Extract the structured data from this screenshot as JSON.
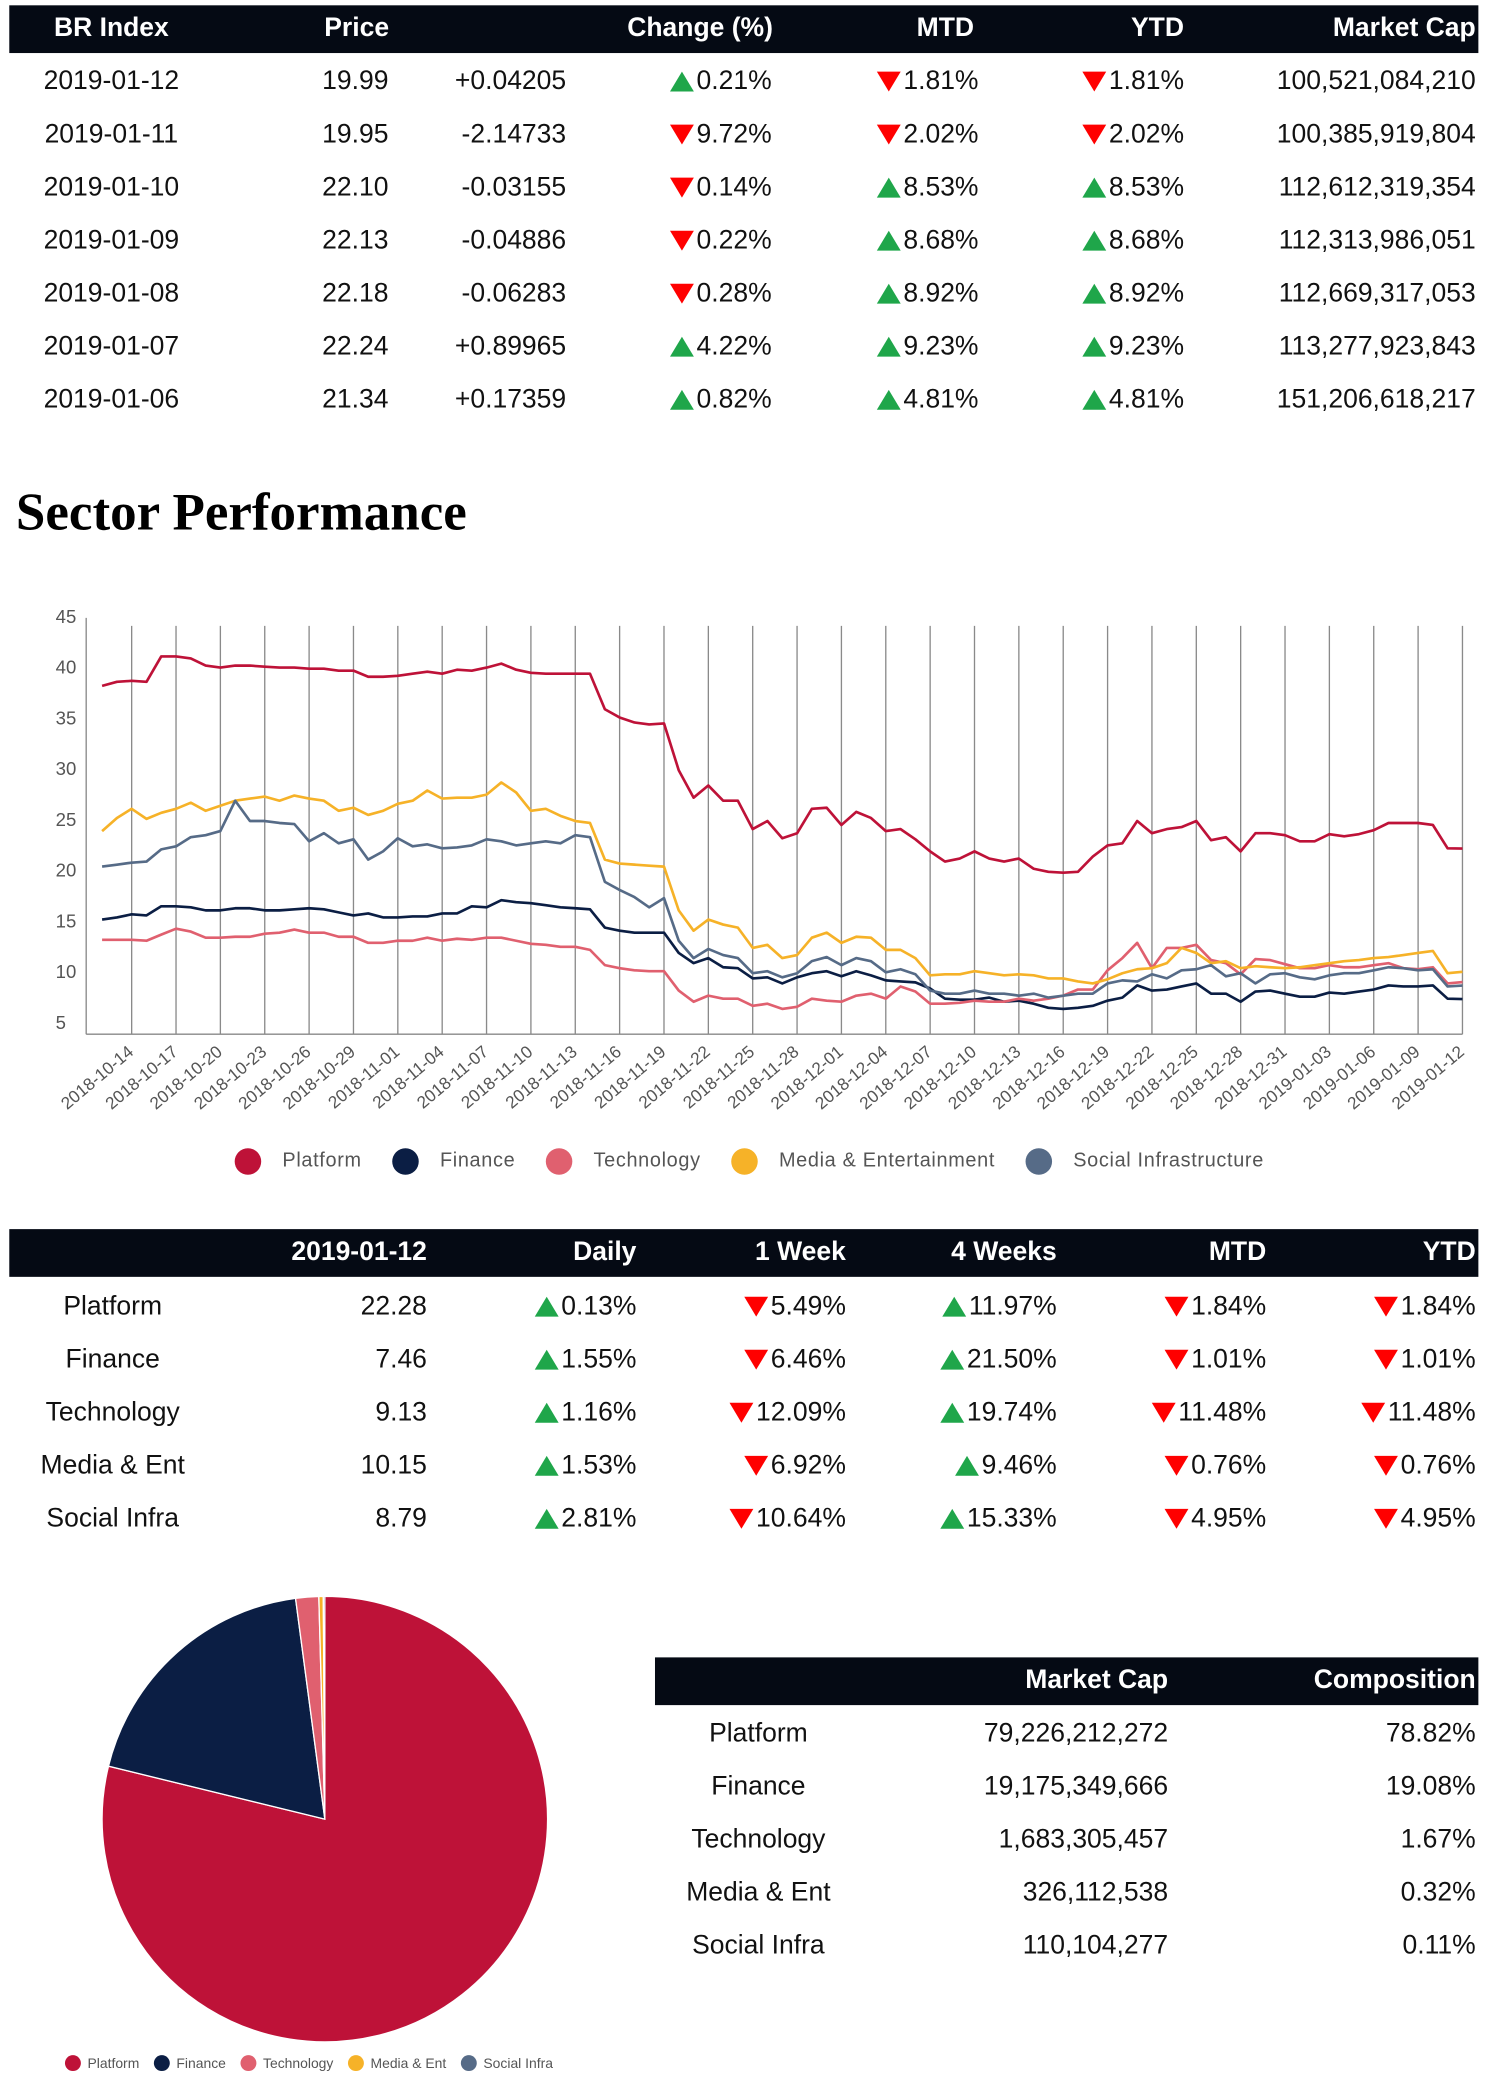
{
  "index_table": {
    "columns": [
      "BR Index",
      "Price",
      "Change (%)",
      "MTD",
      "YTD",
      "Market Cap"
    ],
    "rows": [
      [
        "2019-01-12",
        "19.99",
        "+0.04205",
        {
          "text": "0.21%",
          "trend": "up"
        },
        {
          "text": "1.81%",
          "trend": "down"
        },
        {
          "text": "1.81%",
          "trend": "down"
        },
        "100,521,084,210"
      ],
      [
        "2019-01-11",
        "19.95",
        "-2.14733",
        {
          "text": "9.72%",
          "trend": "down"
        },
        {
          "text": "2.02%",
          "trend": "down"
        },
        {
          "text": "2.02%",
          "trend": "down"
        },
        "100,385,919,804"
      ],
      [
        "2019-01-10",
        "22.10",
        "-0.03155",
        {
          "text": "0.14%",
          "trend": "down"
        },
        {
          "text": "8.53%",
          "trend": "up"
        },
        {
          "text": "8.53%",
          "trend": "up"
        },
        "112,612,319,354"
      ],
      [
        "2019-01-09",
        "22.13",
        "-0.04886",
        {
          "text": "0.22%",
          "trend": "down"
        },
        {
          "text": "8.68%",
          "trend": "up"
        },
        {
          "text": "8.68%",
          "trend": "up"
        },
        "112,313,986,051"
      ],
      [
        "2019-01-08",
        "22.18",
        "-0.06283",
        {
          "text": "0.28%",
          "trend": "down"
        },
        {
          "text": "8.92%",
          "trend": "up"
        },
        {
          "text": "8.92%",
          "trend": "up"
        },
        "112,669,317,053"
      ],
      [
        "2019-01-07",
        "22.24",
        "+0.89965",
        {
          "text": "4.22%",
          "trend": "up"
        },
        {
          "text": "9.23%",
          "trend": "up"
        },
        {
          "text": "9.23%",
          "trend": "up"
        },
        "113,277,923,843"
      ],
      [
        "2019-01-06",
        "21.34",
        "+0.17359",
        {
          "text": "0.82%",
          "trend": "up"
        },
        {
          "text": "4.81%",
          "trend": "up"
        },
        {
          "text": "4.81%",
          "trend": "up"
        },
        "151,206,618,217"
      ]
    ]
  },
  "section_title": "Sector Performance",
  "chart_data": [
    {
      "type": "line",
      "categories": [
        null,
        null,
        "2018-10-14",
        null,
        null,
        "2018-10-17",
        null,
        null,
        "2018-10-20",
        null,
        null,
        "2018-10-23",
        null,
        null,
        "2018-10-26",
        null,
        null,
        "2018-10-29",
        null,
        null,
        "2018-11-01",
        null,
        null,
        "2018-11-04",
        null,
        null,
        "2018-11-07",
        null,
        null,
        "2018-11-10",
        null,
        null,
        "2018-11-13",
        null,
        null,
        "2018-11-16",
        null,
        null,
        "2018-11-19",
        null,
        null,
        "2018-11-22",
        null,
        null,
        "2018-11-25",
        null,
        null,
        "2018-11-28",
        null,
        null,
        "2018-12-01",
        null,
        null,
        "2018-12-04",
        null,
        null,
        "2018-12-07",
        null,
        null,
        "2018-12-10",
        null,
        null,
        "2018-12-13",
        null,
        null,
        "2018-12-16",
        null,
        null,
        "2018-12-19",
        null,
        null,
        "2018-12-22",
        null,
        null,
        "2018-12-25",
        null,
        null,
        "2018-12-28",
        null,
        null,
        "2018-12-31",
        null,
        null,
        "2019-01-03",
        null,
        null,
        "2019-01-06",
        null,
        null,
        "2019-01-09",
        null,
        null,
        "2019-01-12"
      ],
      "series": [
        {
          "name": "Platform",
          "color": "#be1238",
          "values": [
            38.3,
            38.7,
            38.8,
            38.7,
            41.2,
            41.2,
            41.0,
            40.3,
            40.1,
            40.3,
            40.3,
            40.2,
            40.1,
            40.1,
            40.0,
            40.0,
            39.8,
            39.8,
            39.2,
            39.2,
            39.3,
            39.5,
            39.7,
            39.5,
            39.9,
            39.8,
            40.1,
            40.5,
            39.9,
            39.6,
            39.5,
            39.5,
            39.5,
            39.5,
            36.0,
            35.2,
            34.7,
            34.5,
            34.6,
            30.0,
            27.3,
            28.5,
            27.0,
            27.0,
            24.2,
            25.0,
            23.3,
            23.8,
            26.2,
            26.3,
            24.6,
            25.9,
            25.3,
            24.0,
            24.2,
            23.2,
            22.0,
            21.0,
            21.3,
            22.0,
            21.3,
            21.0,
            21.3,
            20.3,
            20.0,
            19.9,
            20.0,
            21.5,
            22.6,
            22.8,
            25.0,
            23.8,
            24.2,
            24.4,
            25.0,
            23.1,
            23.4,
            22.0,
            23.8,
            23.8,
            23.6,
            23.0,
            23.0,
            23.7,
            23.5,
            23.7,
            24.1,
            24.8,
            24.8,
            24.8,
            24.6,
            22.3,
            22.28
          ]
        },
        {
          "name": "Finance",
          "color": "#0b1e44",
          "values": [
            15.3,
            15.5,
            15.8,
            15.7,
            16.6,
            16.6,
            16.5,
            16.2,
            16.2,
            16.4,
            16.4,
            16.2,
            16.2,
            16.3,
            16.4,
            16.3,
            16.0,
            15.7,
            15.9,
            15.5,
            15.5,
            15.6,
            15.6,
            15.9,
            15.9,
            16.6,
            16.5,
            17.2,
            17.0,
            16.9,
            16.7,
            16.5,
            16.4,
            16.3,
            14.5,
            14.2,
            14.0,
            14.0,
            14.0,
            12.0,
            11.0,
            11.5,
            10.6,
            10.5,
            9.5,
            9.6,
            9.0,
            9.6,
            10.0,
            10.2,
            9.7,
            10.2,
            9.8,
            9.3,
            9.2,
            9.1,
            8.5,
            7.5,
            7.4,
            7.4,
            7.6,
            7.2,
            7.3,
            7.0,
            6.6,
            6.5,
            6.6,
            6.8,
            7.3,
            7.6,
            8.8,
            8.3,
            8.4,
            8.7,
            9.0,
            8.0,
            8.0,
            7.2,
            8.2,
            8.3,
            8.0,
            7.7,
            7.7,
            8.1,
            8.0,
            8.2,
            8.4,
            8.8,
            8.7,
            8.7,
            8.8,
            7.5,
            7.46
          ]
        },
        {
          "name": "Technology",
          "color": "#e0606f",
          "values": [
            13.3,
            13.3,
            13.3,
            13.2,
            13.8,
            14.4,
            14.1,
            13.5,
            13.5,
            13.6,
            13.6,
            13.9,
            14.0,
            14.3,
            14.0,
            14.0,
            13.6,
            13.6,
            13.0,
            13.0,
            13.2,
            13.2,
            13.5,
            13.2,
            13.4,
            13.3,
            13.5,
            13.5,
            13.2,
            12.9,
            12.8,
            12.6,
            12.6,
            12.3,
            10.8,
            10.5,
            10.3,
            10.2,
            10.2,
            8.3,
            7.2,
            7.8,
            7.5,
            7.5,
            6.8,
            7.0,
            6.5,
            6.7,
            7.5,
            7.3,
            7.2,
            7.8,
            8.0,
            7.5,
            8.7,
            8.2,
            7.0,
            7.0,
            7.1,
            7.3,
            7.2,
            7.2,
            7.5,
            7.3,
            7.5,
            7.8,
            8.4,
            8.4,
            10.3,
            11.5,
            13.0,
            10.5,
            12.5,
            12.5,
            12.8,
            11.3,
            11.0,
            9.9,
            11.4,
            11.3,
            10.9,
            10.5,
            10.5,
            10.8,
            10.6,
            10.6,
            10.8,
            11.0,
            10.5,
            10.4,
            10.6,
            9.0,
            9.13
          ]
        },
        {
          "name": "Media & Entertainment",
          "color": "#f6b228",
          "values": [
            24.0,
            25.3,
            26.2,
            25.2,
            25.8,
            26.2,
            26.8,
            26.0,
            26.5,
            27.0,
            27.2,
            27.4,
            27.0,
            27.5,
            27.2,
            27.0,
            26.0,
            26.3,
            25.6,
            26.0,
            26.7,
            27.0,
            28.0,
            27.2,
            27.3,
            27.3,
            27.6,
            28.8,
            27.8,
            26.0,
            26.2,
            25.5,
            25.0,
            24.8,
            21.2,
            20.8,
            20.7,
            20.6,
            20.5,
            16.2,
            14.2,
            15.3,
            14.8,
            14.5,
            12.5,
            12.8,
            11.5,
            11.8,
            13.5,
            14.0,
            13.0,
            13.6,
            13.5,
            12.3,
            12.3,
            11.5,
            9.8,
            9.9,
            9.9,
            10.2,
            10.0,
            9.8,
            9.9,
            9.8,
            9.5,
            9.5,
            9.2,
            9.0,
            9.4,
            10.0,
            10.4,
            10.5,
            11.0,
            12.5,
            12.0,
            11.0,
            11.2,
            10.5,
            10.7,
            10.6,
            10.5,
            10.6,
            10.8,
            11.0,
            11.2,
            11.3,
            11.5,
            11.6,
            11.8,
            12.0,
            12.2,
            10.0,
            10.15
          ]
        },
        {
          "name": "Social Infrastructure",
          "color": "#566b87",
          "values": [
            20.5,
            20.7,
            20.9,
            21.0,
            22.2,
            22.5,
            23.4,
            23.6,
            24.0,
            27.0,
            25.0,
            25.0,
            24.8,
            24.7,
            23.0,
            23.8,
            22.8,
            23.2,
            21.2,
            22.0,
            23.3,
            22.5,
            22.7,
            22.3,
            22.4,
            22.6,
            23.2,
            23.0,
            22.6,
            22.8,
            23.0,
            22.8,
            23.6,
            23.4,
            19.0,
            18.2,
            17.5,
            16.5,
            17.4,
            13.2,
            11.5,
            12.4,
            11.8,
            11.5,
            10.0,
            10.2,
            9.6,
            10.0,
            11.2,
            11.6,
            10.8,
            11.5,
            11.2,
            10.1,
            10.4,
            9.9,
            8.3,
            8.0,
            8.0,
            8.3,
            8.0,
            8.0,
            7.8,
            8.0,
            7.6,
            7.8,
            8.0,
            8.0,
            9.0,
            9.3,
            9.2,
            9.9,
            9.5,
            10.3,
            10.4,
            10.8,
            9.7,
            10.0,
            9.0,
            9.9,
            10.0,
            9.6,
            9.4,
            9.8,
            10.0,
            10.0,
            10.3,
            10.6,
            10.5,
            10.3,
            10.4,
            8.7,
            8.79
          ]
        }
      ],
      "ylim": [
        4,
        45
      ],
      "yticks": [
        5,
        10,
        15,
        20,
        25,
        30,
        35,
        40,
        45
      ],
      "grid": true,
      "legend": "bottom"
    },
    {
      "type": "pie",
      "categories": [
        "Platform",
        "Finance",
        "Technology",
        "Media & Ent",
        "Social Infra"
      ],
      "values": [
        78.82,
        19.08,
        1.67,
        0.32,
        0.11
      ],
      "colors": [
        "#be1238",
        "#0b1e44",
        "#e0606f",
        "#f6b228",
        "#566b87"
      ],
      "legend": "bottom"
    }
  ],
  "sector_table": {
    "columns": [
      "2019-01-12",
      "Daily",
      "1 Week",
      "4 Weeks",
      "MTD",
      "YTD"
    ],
    "rows": [
      [
        "Platform",
        "22.28",
        {
          "text": "0.13%",
          "trend": "up"
        },
        {
          "text": "5.49%",
          "trend": "down"
        },
        {
          "text": "11.97%",
          "trend": "up"
        },
        {
          "text": "1.84%",
          "trend": "down"
        },
        {
          "text": "1.84%",
          "trend": "down"
        }
      ],
      [
        "Finance",
        "7.46",
        {
          "text": "1.55%",
          "trend": "up"
        },
        {
          "text": "6.46%",
          "trend": "down"
        },
        {
          "text": "21.50%",
          "trend": "up"
        },
        {
          "text": "1.01%",
          "trend": "down"
        },
        {
          "text": "1.01%",
          "trend": "down"
        }
      ],
      [
        "Technology",
        "9.13",
        {
          "text": "1.16%",
          "trend": "up"
        },
        {
          "text": "12.09%",
          "trend": "down"
        },
        {
          "text": "19.74%",
          "trend": "up"
        },
        {
          "text": "11.48%",
          "trend": "down"
        },
        {
          "text": "11.48%",
          "trend": "down"
        }
      ],
      [
        "Media & Ent",
        "10.15",
        {
          "text": "1.53%",
          "trend": "up"
        },
        {
          "text": "6.92%",
          "trend": "down"
        },
        {
          "text": "9.46%",
          "trend": "up"
        },
        {
          "text": "0.76%",
          "trend": "down"
        },
        {
          "text": "0.76%",
          "trend": "down"
        }
      ],
      [
        "Social Infra",
        "8.79",
        {
          "text": "2.81%",
          "trend": "up"
        },
        {
          "text": "10.64%",
          "trend": "down"
        },
        {
          "text": "15.33%",
          "trend": "up"
        },
        {
          "text": "4.95%",
          "trend": "down"
        },
        {
          "text": "4.95%",
          "trend": "down"
        }
      ]
    ]
  },
  "cap_table": {
    "columns": [
      "Market Cap",
      "Composition"
    ],
    "rows": [
      [
        "Platform",
        "79,226,212,272",
        "78.82%"
      ],
      [
        "Finance",
        "19,175,349,666",
        "19.08%"
      ],
      [
        "Technology",
        "1,683,305,457",
        "1.67%"
      ],
      [
        "Media & Ent",
        "326,112,538",
        "0.32%"
      ],
      [
        "Social Infra",
        "110,104,277",
        "0.11%"
      ]
    ]
  }
}
